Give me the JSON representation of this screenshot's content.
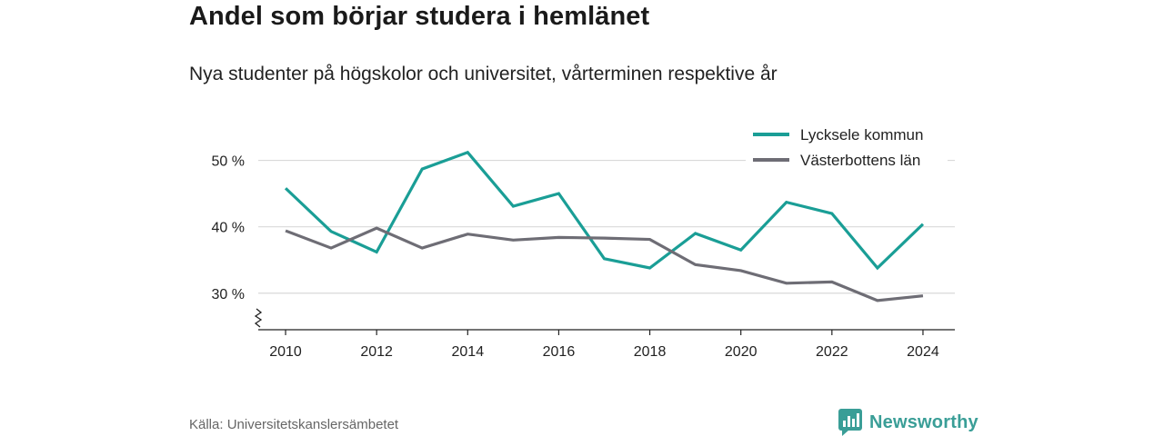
{
  "header": {
    "title": "Andel som börjar studera i hemlänet",
    "subtitle": "Nya studenter på högskolor och universitet, vårterminen respektive år"
  },
  "footer": {
    "source": "Källa: Universitetskanslersämbetet",
    "brand": "Newsworthy",
    "brand_icon": "bar-chart-speech-bubble-icon",
    "brand_color": "#3a9e97"
  },
  "chart_data": {
    "type": "line",
    "x": [
      2010,
      2011,
      2012,
      2013,
      2014,
      2015,
      2016,
      2017,
      2018,
      2019,
      2020,
      2021,
      2022,
      2023,
      2024
    ],
    "x_tick_labels": [
      "2010",
      "2012",
      "2014",
      "2016",
      "2018",
      "2020",
      "2022",
      "2024"
    ],
    "x_ticks": [
      2010,
      2012,
      2014,
      2016,
      2018,
      2020,
      2022,
      2024
    ],
    "y_ticks": [
      30,
      40,
      50
    ],
    "y_tick_labels": [
      "30 %",
      "40 %",
      "50 %"
    ],
    "xlim": [
      2009.4,
      2024.7
    ],
    "ylim": [
      24.5,
      55
    ],
    "y_axis_broken": true,
    "grid": "horizontal",
    "legend_position": "top-right",
    "series": [
      {
        "name": "Lycksele kommun",
        "color": "#1a9e96",
        "values": [
          45.8,
          39.3,
          36.2,
          48.7,
          51.2,
          43.1,
          45.0,
          35.2,
          33.8,
          39.0,
          36.5,
          43.7,
          42.0,
          33.8,
          40.4
        ]
      },
      {
        "name": "Västerbottens län",
        "color": "#6e6d75",
        "values": [
          39.4,
          36.8,
          39.8,
          36.8,
          38.9,
          38.0,
          38.4,
          38.3,
          38.1,
          34.3,
          33.4,
          31.5,
          31.7,
          28.9,
          29.6
        ]
      }
    ]
  }
}
